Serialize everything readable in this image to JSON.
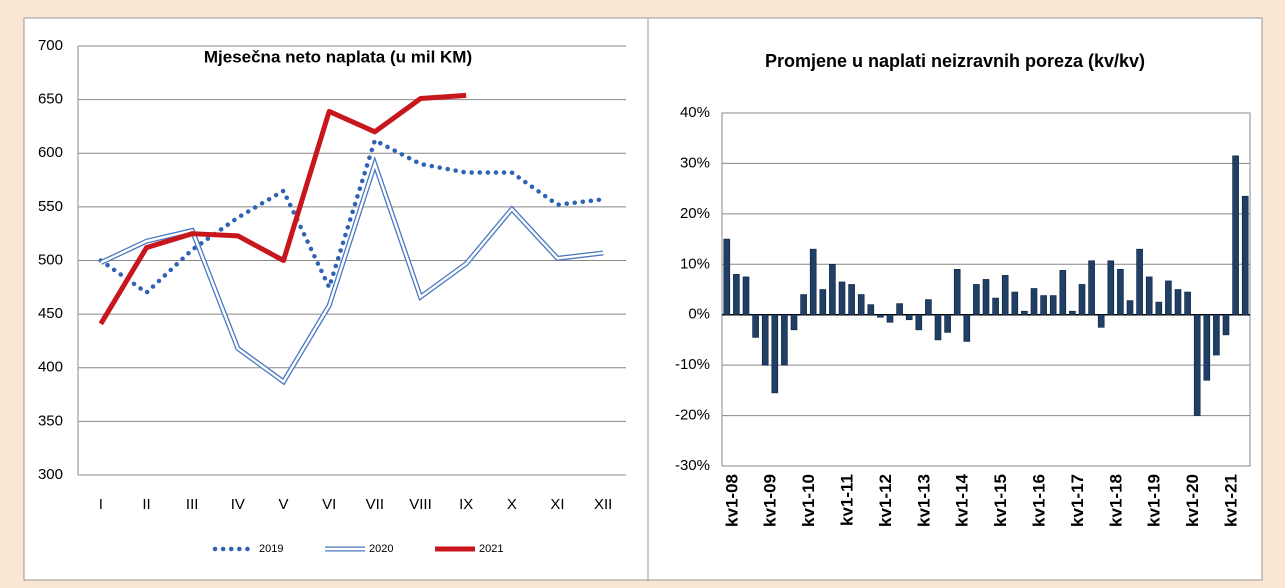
{
  "chart_data": [
    {
      "type": "line",
      "title": "Mjesečna neto naplata (u mil KM)",
      "categories": [
        "I",
        "II",
        "III",
        "IV",
        "V",
        "VI",
        "VII",
        "VIII",
        "IX",
        "X",
        "XI",
        "XII"
      ],
      "ylim": [
        300,
        700
      ],
      "yticks": [
        300,
        350,
        400,
        450,
        500,
        550,
        600,
        650,
        700
      ],
      "grid": true,
      "legend": "bottom",
      "series": [
        {
          "name": "2019",
          "color": "#2e62b5",
          "line_style": "dotted",
          "values": [
            500,
            470,
            510,
            540,
            565,
            475,
            612,
            590,
            582,
            582,
            552,
            557
          ]
        },
        {
          "name": "2020",
          "color": "#4a78c2",
          "line_style": "double",
          "values": [
            498,
            518,
            528,
            418,
            387,
            458,
            590,
            466,
            497,
            548,
            502,
            507
          ]
        },
        {
          "name": "2021",
          "color": "#c8161d",
          "line_style": "solid",
          "values": [
            441,
            512,
            525,
            523,
            500,
            639,
            620,
            651,
            654,
            null,
            null,
            null
          ]
        }
      ]
    },
    {
      "type": "bar",
      "title": "Promjene u naplati neizravnih poreza (kv/kv)",
      "categories": [
        "kv1-08",
        null,
        null,
        null,
        "kv1-09",
        null,
        null,
        null,
        "kv1-10",
        null,
        null,
        null,
        "kv1-11",
        null,
        null,
        null,
        "kv1-12",
        null,
        null,
        null,
        "kv1-13",
        null,
        null,
        null,
        "kv1-14",
        null,
        null,
        null,
        "kv1-15",
        null,
        null,
        null,
        "kv1-16",
        null,
        null,
        null,
        "kv1-17",
        null,
        null,
        null,
        "kv1-18",
        null,
        null,
        null,
        "kv1-19",
        null,
        null,
        null,
        "kv1-20",
        null,
        null,
        null,
        "kv1-21",
        null,
        null
      ],
      "values": [
        15,
        8,
        7.5,
        -4.5,
        -10,
        -15.5,
        -10,
        -3,
        4,
        13,
        5,
        10,
        6.5,
        6,
        4,
        2,
        -0.5,
        -1.5,
        2.2,
        -1,
        -3,
        3,
        -5,
        -3.5,
        9,
        -5.3,
        6,
        7,
        3.3,
        7.8,
        4.5,
        0.7,
        5.2,
        3.8,
        3.8,
        8.8,
        0.7,
        6,
        10.7,
        -2.5,
        10.7,
        9,
        2.8,
        13,
        7.5,
        2.5,
        6.7,
        5,
        4.5,
        -20,
        -13,
        -8,
        -4,
        31.5,
        23.5
      ],
      "color": "#1f3f66",
      "ylim": [
        -30,
        40
      ],
      "yticks": [
        {
          "value": -30,
          "label": "-30%"
        },
        {
          "value": -20,
          "label": "-20%"
        },
        {
          "value": -10,
          "label": "-10%"
        },
        {
          "value": 0,
          "label": "0%"
        },
        {
          "value": 10,
          "label": "10%"
        },
        {
          "value": 20,
          "label": "20%"
        },
        {
          "value": 30,
          "label": "30%"
        },
        {
          "value": 40,
          "label": "40%"
        }
      ],
      "grid": true
    }
  ]
}
